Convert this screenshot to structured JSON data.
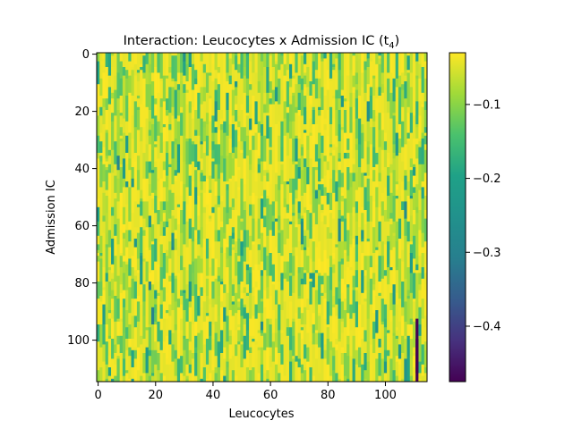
{
  "chart_data": {
    "type": "heatmap",
    "title": "Interaction: Leucocytes x Admission IC (t",
    "title_subscript": "4",
    "title_close": ")",
    "xlabel": "Leucocytes",
    "ylabel": "Admission IC",
    "x_ticks": [
      "0",
      "20",
      "40",
      "60",
      "80",
      "100"
    ],
    "y_ticks": [
      "0",
      "20",
      "40",
      "60",
      "80",
      "100"
    ],
    "xlim": [
      -0.5,
      114.5
    ],
    "ylim": [
      114.5,
      -0.5
    ],
    "n_cols": 115,
    "n_rows": 115,
    "colormap": "viridis",
    "value_range": [
      -0.475,
      -0.03
    ],
    "colorbar_ticks": [
      "−0.1",
      "−0.2",
      "−0.3",
      "−0.4"
    ],
    "colorbar_tick_values": [
      -0.1,
      -0.2,
      -0.3,
      -0.4
    ],
    "typical_value_range": [
      -0.24,
      -0.03
    ],
    "notable_cells": [
      {
        "x": 111,
        "y_start": 93,
        "y_end": 111,
        "value": -0.475
      }
    ],
    "colors": {
      "viridis_low": "#440154",
      "viridis_mid": "#21918c",
      "viridis_high": "#fde725"
    }
  }
}
